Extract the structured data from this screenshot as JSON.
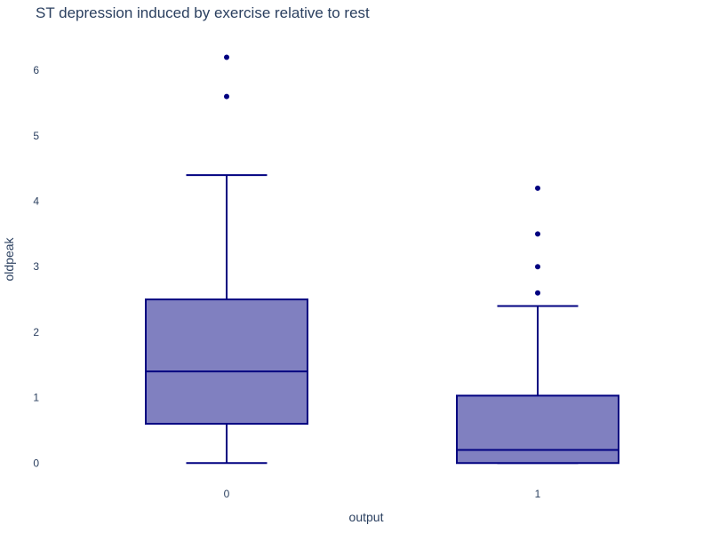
{
  "chart_data": {
    "type": "box",
    "title": "ST depression induced by exercise relative to rest",
    "xlabel": "output",
    "ylabel": "oldpeak",
    "categories": [
      "0",
      "1"
    ],
    "y_ticks": [
      "0",
      "1",
      "2",
      "3",
      "4",
      "5",
      "6"
    ],
    "ylim": [
      -0.2,
      6.6
    ],
    "grid": false,
    "color": "#000080",
    "fill_color": "#8080c0",
    "boxes": [
      {
        "category": "0",
        "min": 0,
        "q1": 0.6,
        "median": 1.4,
        "q3": 2.5,
        "max": 4.4,
        "outliers": [
          5.6,
          6.2
        ]
      },
      {
        "category": "1",
        "min": 0,
        "q1": 0,
        "median": 0.2,
        "q3": 1.03,
        "max": 2.4,
        "outliers": [
          2.6,
          3.0,
          3.5,
          4.2
        ]
      }
    ]
  }
}
